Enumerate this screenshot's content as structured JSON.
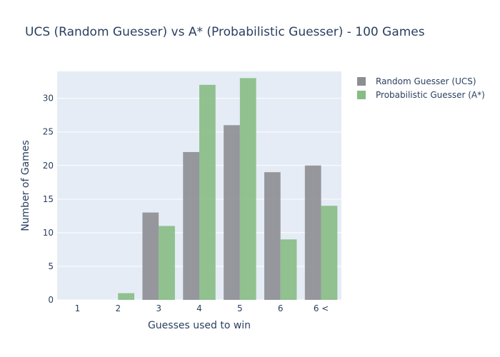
{
  "chart_data": {
    "type": "bar",
    "title": "UCS (Random Guesser) vs A* (Probabilistic Guesser) - 100 Games",
    "xlabel": "Guesses used to win",
    "ylabel": "Number of Games",
    "categories": [
      "1",
      "2",
      "3",
      "4",
      "5",
      "6",
      "6 <"
    ],
    "series": [
      {
        "name": "Random Guesser (UCS)",
        "values": [
          0,
          0,
          13,
          22,
          26,
          19,
          20
        ],
        "color": "#8c8e93"
      },
      {
        "name": "Probabilistic Guesser (A*)",
        "values": [
          0,
          1,
          11,
          32,
          33,
          9,
          14
        ],
        "color": "#86bd84"
      }
    ],
    "ylim": [
      0,
      34
    ],
    "yticks": [
      0,
      5,
      10,
      15,
      20,
      25,
      30
    ],
    "grid": true,
    "legend_position": "top-right",
    "plot_background": "#e5ecf6",
    "grid_color": "#ffffff"
  }
}
